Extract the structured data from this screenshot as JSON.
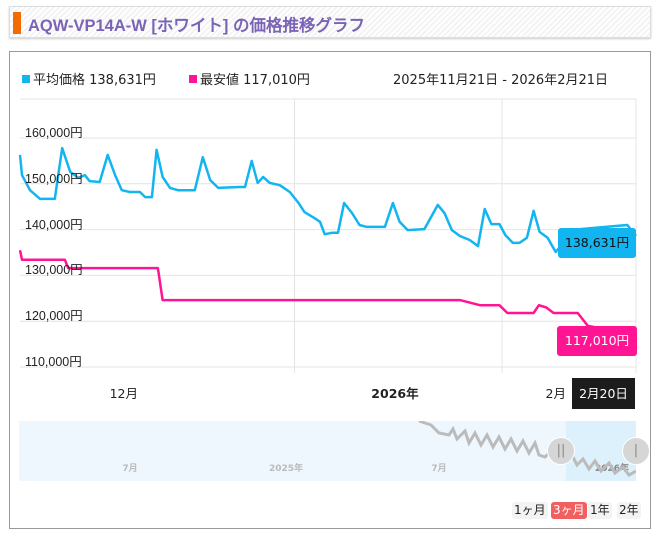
{
  "title": "AQW-VP14A-W [ホワイト] の価格推移グラフ",
  "legend": {
    "avg_label": "平均価格 138,631円",
    "min_label": "最安値 117,010円",
    "date_range": "2025年11月21日 - 2026年2月21日"
  },
  "colors": {
    "avg": "#13b5f0",
    "min": "#ff1493",
    "accent": "#f26a00",
    "title": "#7b63b6"
  },
  "tooltip": "2月20日",
  "value_labels": {
    "avg": "138,631円",
    "min": "117,010円"
  },
  "navigator": {
    "labels": [
      "7月",
      "2025年",
      "7月",
      "2026年"
    ]
  },
  "range_buttons": [
    {
      "label": "1ヶ月",
      "active": false
    },
    {
      "label": "3ヶ月",
      "active": true
    },
    {
      "label": "1年",
      "active": false
    },
    {
      "label": "2年",
      "active": false
    }
  ],
  "chart_data": {
    "type": "line",
    "x_unit": "days since 2025-11-21",
    "xlim": [
      0,
      92
    ],
    "ylim": [
      110000,
      165000
    ],
    "yticks": [
      "110,000円",
      "120,000円",
      "130,000円",
      "140,000円",
      "150,000円",
      "160,000円"
    ],
    "ytick_values": [
      110000,
      120000,
      130000,
      140000,
      150000,
      160000
    ],
    "xticks": [
      {
        "label": "12月",
        "day": 15.5,
        "bold": false
      },
      {
        "label": "2026年",
        "day": 56,
        "bold": true
      },
      {
        "label": "2月",
        "day": 86,
        "bold": false
      }
    ],
    "gridlines_x_days": [
      41,
      72,
      92
    ],
    "series": [
      {
        "name": "平均価格",
        "color": "#13b5f0",
        "points": [
          [
            0,
            156300
          ],
          [
            0.3,
            151900
          ],
          [
            1.5,
            148600
          ],
          [
            3,
            146700
          ],
          [
            5.2,
            146700
          ],
          [
            6.3,
            157800
          ],
          [
            7.5,
            152600
          ],
          [
            8.7,
            151300
          ],
          [
            9.7,
            151900
          ],
          [
            10.4,
            150600
          ],
          [
            11.9,
            150400
          ],
          [
            13.1,
            156300
          ],
          [
            14.2,
            151900
          ],
          [
            15.2,
            148600
          ],
          [
            16.4,
            148200
          ],
          [
            17.9,
            148200
          ],
          [
            18.7,
            147100
          ],
          [
            19.7,
            147100
          ],
          [
            20.4,
            157400
          ],
          [
            21.3,
            151500
          ],
          [
            22.4,
            149100
          ],
          [
            23.6,
            148600
          ],
          [
            26.1,
            148600
          ],
          [
            27.3,
            155800
          ],
          [
            28.4,
            150800
          ],
          [
            29.6,
            149100
          ],
          [
            32.8,
            149300
          ],
          [
            33.6,
            149300
          ],
          [
            34.6,
            155000
          ],
          [
            35.5,
            150200
          ],
          [
            36.3,
            151500
          ],
          [
            37.3,
            150200
          ],
          [
            38.8,
            149700
          ],
          [
            40.3,
            148200
          ],
          [
            41.5,
            146000
          ],
          [
            42.5,
            143800
          ],
          [
            44,
            142500
          ],
          [
            44.8,
            141700
          ],
          [
            45.5,
            139000
          ],
          [
            46.6,
            139300
          ],
          [
            47.5,
            139300
          ],
          [
            48.4,
            145800
          ],
          [
            49.6,
            143600
          ],
          [
            50.7,
            141000
          ],
          [
            51.8,
            140600
          ],
          [
            54.5,
            140600
          ],
          [
            55.7,
            145800
          ],
          [
            56.7,
            141700
          ],
          [
            57.9,
            139900
          ],
          [
            60.4,
            140100
          ],
          [
            62.4,
            145400
          ],
          [
            63.4,
            143600
          ],
          [
            64.5,
            139900
          ],
          [
            65.7,
            138600
          ],
          [
            67.2,
            137700
          ],
          [
            68.4,
            136400
          ],
          [
            69.4,
            144500
          ],
          [
            70.4,
            141200
          ],
          [
            71.6,
            141200
          ],
          [
            72.5,
            138800
          ],
          [
            73.6,
            137100
          ],
          [
            74.6,
            137100
          ],
          [
            75.7,
            138200
          ],
          [
            76.7,
            144100
          ],
          [
            77.6,
            139500
          ],
          [
            78.8,
            138200
          ],
          [
            80,
            135100
          ],
          [
            82.8,
            140000
          ],
          [
            90.7,
            141000
          ],
          [
            92,
            138631
          ]
        ]
      },
      {
        "name": "最安値",
        "color": "#ff1493",
        "points": [
          [
            0,
            135500
          ],
          [
            0.3,
            133400
          ],
          [
            6.7,
            133400
          ],
          [
            7.2,
            131600
          ],
          [
            20.6,
            131600
          ],
          [
            21.3,
            124600
          ],
          [
            65.7,
            124600
          ],
          [
            68.7,
            123500
          ],
          [
            71.6,
            123500
          ],
          [
            72.8,
            121800
          ],
          [
            76.7,
            121800
          ],
          [
            77.5,
            123500
          ],
          [
            78.6,
            123000
          ],
          [
            79.7,
            121800
          ],
          [
            83.3,
            121800
          ],
          [
            84.8,
            119000
          ],
          [
            92,
            117010
          ]
        ]
      }
    ]
  }
}
